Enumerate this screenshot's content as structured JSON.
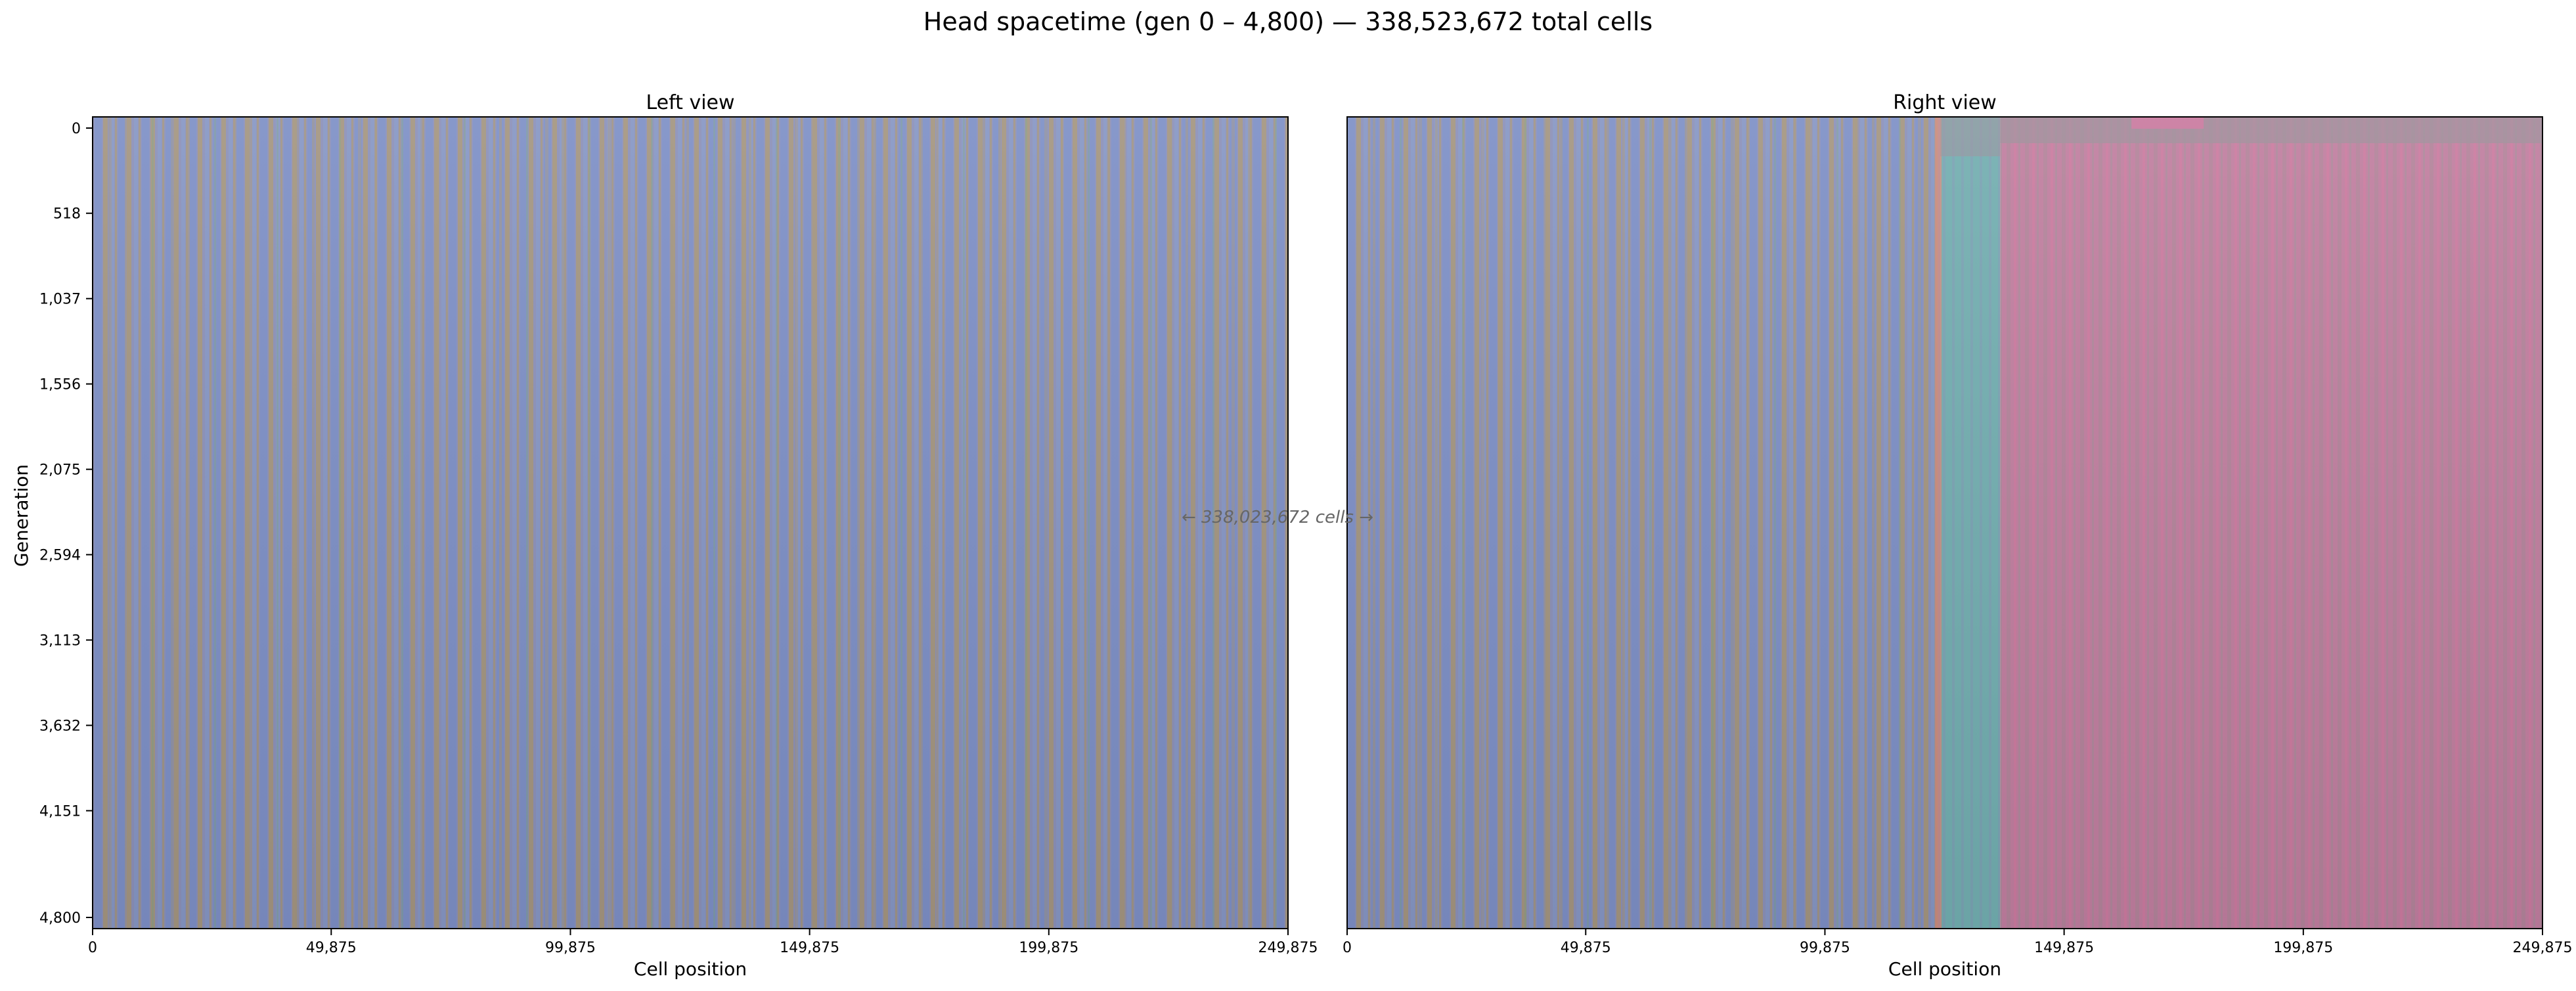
{
  "chart_data": {
    "type": "heatmap",
    "title": "Head spacetime (gen 0 – 4,800)  —  338,523,672 total cells",
    "ylabel": "Generation",
    "annotation": "← 338,023,672 cells →",
    "ylim": [
      0,
      4800
    ],
    "y_ticks": [
      "0",
      "518",
      "1,037",
      "1,556",
      "2,075",
      "2,594",
      "3,113",
      "3,632",
      "4,151",
      "4,800"
    ],
    "y_tick_values": [
      0,
      518,
      1037,
      1556,
      2075,
      2594,
      3113,
      3632,
      4151,
      4800
    ],
    "colors": {
      "blue": "#7d8fc6",
      "tan": "#a39580",
      "green": "#7fa38a",
      "pink": "#c97a9f",
      "teal": "#6fb3b0",
      "salmon": "#d88a78",
      "gray": "#9a8e99"
    },
    "panels": [
      {
        "title": "Left view",
        "xlabel": "Cell position",
        "xlim": [
          0,
          249875
        ],
        "x_ticks": [
          "0",
          "49,875",
          "99,875",
          "149,875",
          "199,875",
          "249,875"
        ],
        "x_tick_values": [
          0,
          49875,
          99875,
          149875,
          199875,
          249875
        ],
        "regions": [
          {
            "x_start": 0,
            "x_end": 249875,
            "pattern": "striped blue/tan"
          }
        ]
      },
      {
        "title": "Right view",
        "xlabel": "Cell position",
        "xlim": [
          0,
          249875
        ],
        "x_ticks": [
          "0",
          "49,875",
          "99,875",
          "149,875",
          "199,875",
          "249,875"
        ],
        "x_tick_values": [
          0,
          49875,
          99875,
          149875,
          199875,
          249875
        ],
        "regions": [
          {
            "x_start": 0,
            "x_end": 124000,
            "pattern": "striped blue/tan"
          },
          {
            "x_start": 124000,
            "x_end": 136500,
            "pattern": "teal band"
          },
          {
            "x_start": 136500,
            "x_end": 249875,
            "pattern": "pink/gray region"
          }
        ]
      }
    ]
  }
}
